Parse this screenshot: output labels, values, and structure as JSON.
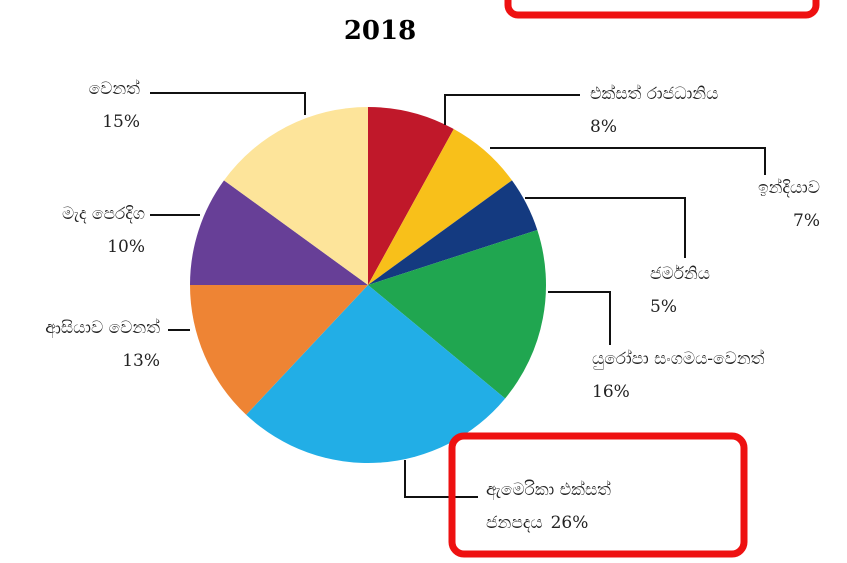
{
  "chart_data": {
    "type": "pie",
    "title": "2018",
    "categories": [
      "එක්සත් රාජධානිය",
      "ඉන්දියාව",
      "ජර්මනිය",
      "යුරෝපා සංගමය-වෙනත්",
      "ඇමෙරිකා එක්සත් ජනපදය",
      "ආසියාව වෙනත්",
      "මැද පෙරදිග",
      "වෙනත්"
    ],
    "values": [
      8,
      7,
      5,
      16,
      26,
      13,
      10,
      15
    ],
    "value_labels": [
      "8%",
      "7%",
      "5%",
      "16%",
      "26%",
      "13%",
      "10%",
      "15%"
    ],
    "colors": [
      "#c0182a",
      "#f8c01a",
      "#143a80",
      "#20a650",
      "#22aee6",
      "#ee8434",
      "#673f97",
      "#fde49a"
    ]
  }
}
